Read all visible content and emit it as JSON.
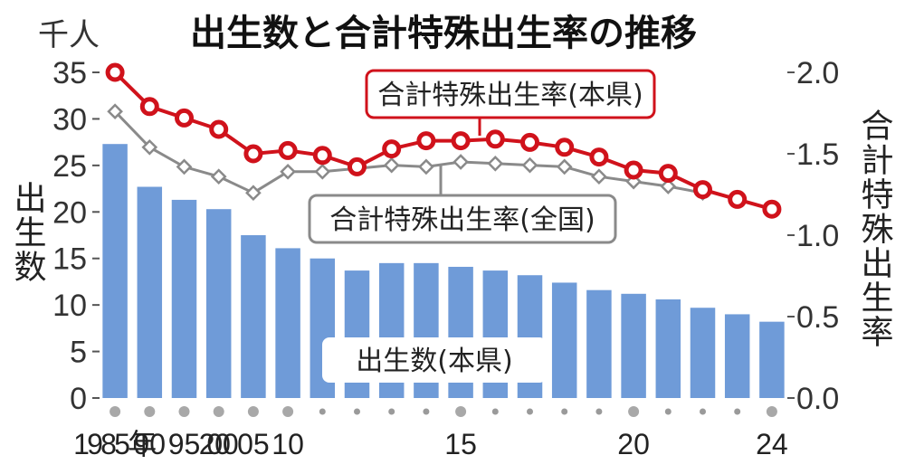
{
  "chart_data": {
    "type": "bar",
    "title": "出生数と合計特殊出生率の推移",
    "y_unit_label": "千人",
    "ylabel_left": "出生数",
    "ylabel_right": "合計特殊出生率",
    "ylim_left": [
      0,
      35
    ],
    "ylim_right": [
      0.0,
      2.0
    ],
    "yticks_left": [
      "0",
      "5",
      "10",
      "15",
      "20",
      "25",
      "30",
      "35"
    ],
    "yticks_right": [
      "0.0",
      "0.5",
      "1.0",
      "1.5",
      "2.0"
    ],
    "x": [
      1985,
      1990,
      1995,
      2000,
      2005,
      2010,
      2011,
      2012,
      2013,
      2014,
      2015,
      2016,
      2017,
      2018,
      2019,
      2020,
      2021,
      2022,
      2023,
      2024
    ],
    "x_tick_labels": [
      "1985年",
      "90",
      "95",
      "2000",
      "05",
      "10",
      "",
      "",
      "",
      "",
      "15",
      "",
      "",
      "",
      "",
      "20",
      "",
      "",
      "",
      "24"
    ],
    "series": [
      {
        "name": "出生数(本県)",
        "kind": "bar",
        "axis": "left",
        "color": "#6f9bd8",
        "values": [
          27.3,
          22.7,
          21.3,
          20.3,
          17.5,
          16.1,
          15.0,
          13.7,
          14.5,
          14.5,
          14.1,
          13.7,
          13.2,
          12.4,
          11.6,
          11.2,
          10.6,
          9.7,
          9.0,
          8.2
        ]
      },
      {
        "name": "合計特殊出生率(本県)",
        "kind": "line",
        "axis": "right",
        "color": "#d0121b",
        "values": [
          2.0,
          1.79,
          1.72,
          1.65,
          1.5,
          1.52,
          1.49,
          1.42,
          1.53,
          1.58,
          1.58,
          1.59,
          1.57,
          1.54,
          1.48,
          1.4,
          1.38,
          1.28,
          1.22,
          1.16
        ]
      },
      {
        "name": "合計特殊出生率(全国)",
        "kind": "line",
        "axis": "right",
        "color": "#8a8a8a",
        "values": [
          1.76,
          1.54,
          1.42,
          1.36,
          1.26,
          1.39,
          1.39,
          1.41,
          1.43,
          1.42,
          1.45,
          1.44,
          1.43,
          1.42,
          1.36,
          1.33,
          1.3,
          1.26,
          null,
          null
        ]
      }
    ],
    "grid": false
  }
}
